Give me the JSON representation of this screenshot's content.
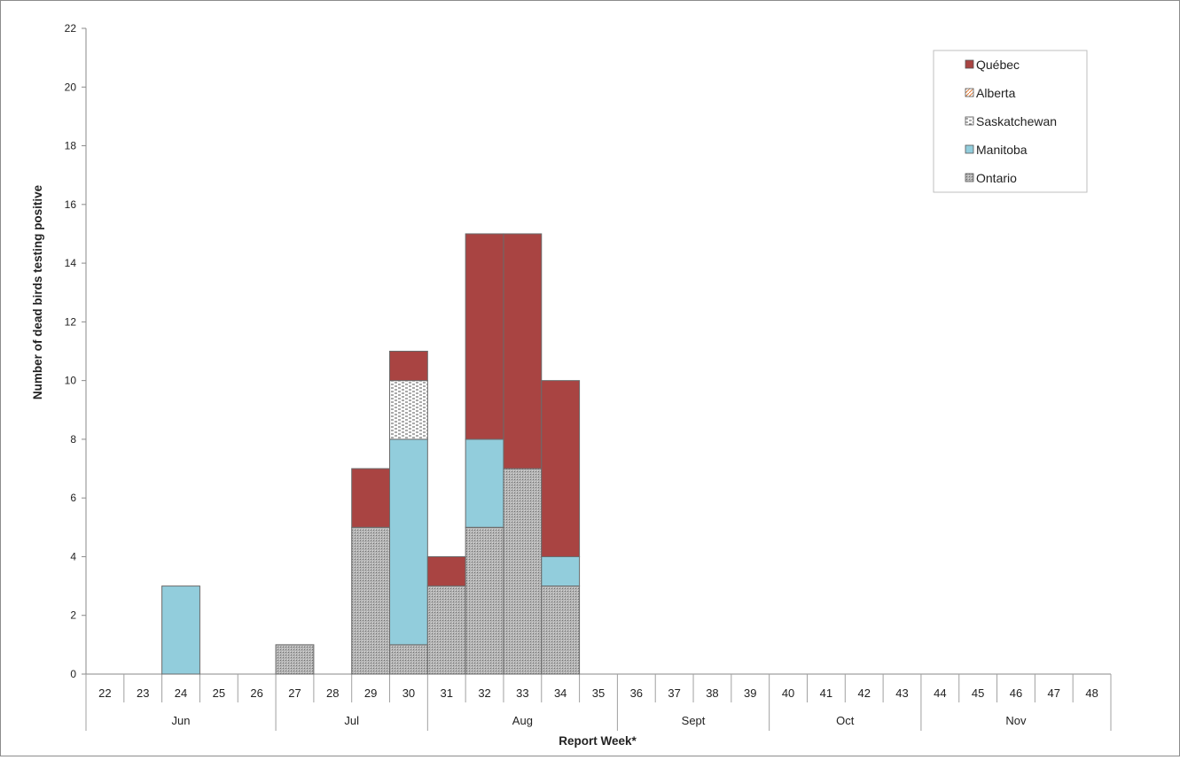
{
  "chart_data": {
    "type": "bar",
    "stacked": true,
    "title": "",
    "xlabel": "Report Week*",
    "ylabel": "Number of dead birds testing positive",
    "ylim": [
      0,
      22
    ],
    "yticks": [
      0,
      2,
      4,
      6,
      8,
      10,
      12,
      14,
      16,
      18,
      20,
      22
    ],
    "grid": false,
    "legend_position": "top-right",
    "categories": [
      "22",
      "23",
      "24",
      "25",
      "26",
      "27",
      "28",
      "29",
      "30",
      "31",
      "32",
      "33",
      "34",
      "35",
      "36",
      "37",
      "38",
      "39",
      "40",
      "41",
      "42",
      "43",
      "44",
      "45",
      "46",
      "47",
      "48"
    ],
    "month_groups": [
      {
        "label": "Jun",
        "start": 0,
        "end": 4
      },
      {
        "label": "Jul",
        "start": 5,
        "end": 8
      },
      {
        "label": "Aug",
        "start": 9,
        "end": 13
      },
      {
        "label": "Sept",
        "start": 14,
        "end": 17
      },
      {
        "label": "Oct",
        "start": 18,
        "end": 21
      },
      {
        "label": "Nov",
        "start": 22,
        "end": 26
      }
    ],
    "series": [
      {
        "name": "Ontario",
        "color": "#9a9a9a",
        "pattern": "dots-dense",
        "values": [
          0,
          0,
          0,
          0,
          0,
          1,
          0,
          5,
          1,
          3,
          5,
          7,
          3,
          0,
          0,
          0,
          0,
          0,
          0,
          0,
          0,
          0,
          0,
          0,
          0,
          0,
          0
        ]
      },
      {
        "name": "Manitoba",
        "color": "#92cddc",
        "pattern": "solid",
        "values": [
          0,
          0,
          3,
          0,
          0,
          0,
          0,
          0,
          7,
          0,
          3,
          0,
          1,
          0,
          0,
          0,
          0,
          0,
          0,
          0,
          0,
          0,
          0,
          0,
          0,
          0,
          0
        ]
      },
      {
        "name": "Saskatchewan",
        "color": "#ffffff",
        "pattern": "dashes",
        "values": [
          0,
          0,
          0,
          0,
          0,
          0,
          0,
          0,
          2,
          0,
          0,
          0,
          0,
          0,
          0,
          0,
          0,
          0,
          0,
          0,
          0,
          0,
          0,
          0,
          0,
          0,
          0
        ]
      },
      {
        "name": "Alberta",
        "color": "#f4b183",
        "pattern": "diagonal",
        "values": [
          0,
          0,
          0,
          0,
          0,
          0,
          0,
          0,
          0,
          0,
          0,
          0,
          0,
          0,
          0,
          0,
          0,
          0,
          0,
          0,
          0,
          0,
          0,
          0,
          0,
          0,
          0
        ]
      },
      {
        "name": "Québec",
        "color": "#a94442",
        "pattern": "solid",
        "values": [
          0,
          0,
          0,
          0,
          0,
          0,
          0,
          2,
          1,
          1,
          7,
          8,
          6,
          0,
          0,
          0,
          0,
          0,
          0,
          0,
          0,
          0,
          0,
          0,
          0,
          0,
          0
        ]
      }
    ],
    "legend_order": [
      "Québec",
      "Alberta",
      "Saskatchewan",
      "Manitoba",
      "Ontario"
    ]
  }
}
